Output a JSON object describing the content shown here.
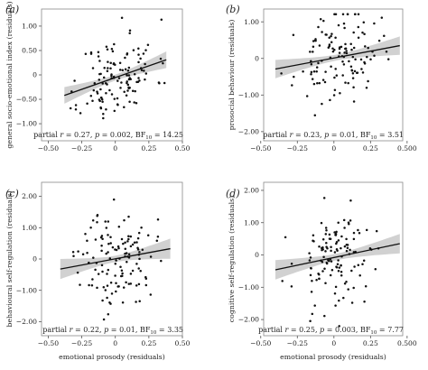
{
  "colors": {
    "band": "#c9c9c9",
    "line": "#111111",
    "point": "#111111"
  },
  "chart_data": [
    {
      "type": "scatter",
      "panel_label": "(a)",
      "ylabel": "general socio-emotional index (residuals)",
      "xlabel": "",
      "x_ticks": [
        -0.5,
        -0.25,
        0,
        0.25,
        0.5
      ],
      "x_tick_labels": [
        "−0.50",
        "−0.25",
        "0",
        "0.25",
        "0.50"
      ],
      "y_ticks": [
        1.0,
        0.5,
        0,
        -0.5,
        -1.0
      ],
      "y_tick_labels": [
        "1.00",
        "0.50",
        "0",
        "−0.50",
        "−1.00"
      ],
      "xlim": [
        -0.55,
        0.5
      ],
      "ylim": [
        -1.35,
        1.35
      ],
      "fit": {
        "x": [
          -0.38,
          0.38
        ],
        "y": [
          -0.42,
          0.31
        ],
        "band_halfwidth": {
          "ends": 0.17,
          "center": 0.06
        }
      },
      "stat": {
        "r": "0.27",
        "p": "0.002",
        "bf": "14.25"
      },
      "seed": 11
    },
    {
      "type": "scatter",
      "panel_label": "(b)",
      "ylabel": "prosocial behaviour (residuals)",
      "xlabel": "",
      "x_ticks": [
        -0.5,
        -0.25,
        0,
        0.25,
        0.5
      ],
      "x_tick_labels": [
        "−0.50",
        "−0.25",
        "0",
        "0.25",
        "0.500"
      ],
      "y_ticks": [
        1.0,
        0,
        -1.0,
        -2.0
      ],
      "y_tick_labels": [
        "1.00",
        "0",
        "−1.00",
        "−2.00"
      ],
      "xlim": [
        -0.48,
        0.47
      ],
      "ylim": [
        -2.25,
        1.35
      ],
      "fit": {
        "x": [
          -0.4,
          0.45
        ],
        "y": [
          -0.29,
          0.35
        ],
        "band_halfwidth": {
          "ends": 0.25,
          "center": 0.08
        }
      },
      "stat": {
        "r": "0.23",
        "p": "0.01",
        "bf": "3.51"
      },
      "seed": 23
    },
    {
      "type": "scatter",
      "panel_label": "(c)",
      "ylabel": "behavioural self-regulation (residuals)",
      "xlabel": "emotional prosody (residuals)",
      "x_ticks": [
        -0.5,
        -0.25,
        0,
        0.25,
        0.5
      ],
      "x_tick_labels": [
        "−0.50",
        "−0.25",
        "0",
        "0.25",
        "0.50"
      ],
      "y_ticks": [
        2.0,
        1.0,
        0,
        -1.0,
        -2.0
      ],
      "y_tick_labels": [
        "2.00",
        "1.00",
        "0",
        "−1.00",
        "−2.00"
      ],
      "xlim": [
        -0.55,
        0.5
      ],
      "ylim": [
        -2.45,
        2.45
      ],
      "fit": {
        "x": [
          -0.41,
          0.41
        ],
        "y": [
          -0.32,
          0.33
        ],
        "band_halfwidth": {
          "ends": 0.32,
          "center": 0.1
        }
      },
      "stat": {
        "r": "0.22",
        "p": "0.01",
        "bf": "3.35"
      },
      "seed": 37
    },
    {
      "type": "scatter",
      "panel_label": "(d)",
      "ylabel": "cognitive self-regulation (residuals)",
      "xlabel": "emotional prosody (residuals)",
      "x_ticks": [
        -0.5,
        -0.25,
        0,
        0.25,
        0.5
      ],
      "x_tick_labels": [
        "−0.50",
        "−0.25",
        "0",
        "0.25",
        "0.500"
      ],
      "y_ticks": [
        2.0,
        1.0,
        0,
        -1.0,
        -2.0
      ],
      "y_tick_labels": [
        "2.00",
        "1.00",
        "0",
        "−1.00",
        "−2.00"
      ],
      "xlim": [
        -0.48,
        0.47
      ],
      "ylim": [
        -2.5,
        2.25
      ],
      "fit": {
        "x": [
          -0.4,
          0.45
        ],
        "y": [
          -0.46,
          0.35
        ],
        "band_halfwidth": {
          "ends": 0.3,
          "center": 0.1
        }
      },
      "stat": {
        "r": "0.25",
        "p": "0.003",
        "bf": "7.77"
      },
      "seed": 53
    }
  ]
}
